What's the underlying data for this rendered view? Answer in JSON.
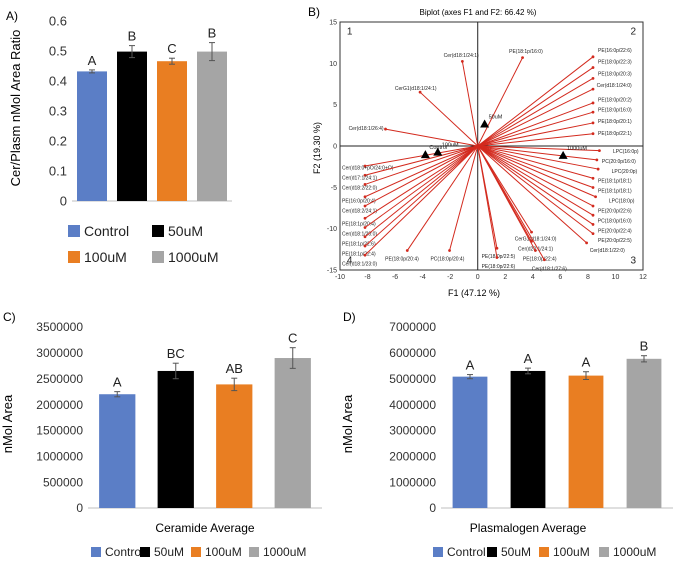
{
  "panels": {
    "A": "A)",
    "B": "B)",
    "C": "C)",
    "D": "D)"
  },
  "colors": {
    "Control": "#5b7ec6",
    "50uM": "#000000",
    "100uM": "#e97e22",
    "1000uM": "#a5a5a5",
    "biplot_red": "#d32a1e"
  },
  "legend": [
    "Control",
    "50uM",
    "100uM",
    "1000uM"
  ],
  "chart_data": [
    {
      "id": "A",
      "type": "bar",
      "categories": [
        "Control",
        "50uM",
        "100uM",
        "1000uM"
      ],
      "values": [
        0.432,
        0.498,
        0.466,
        0.498
      ],
      "errors": [
        0.005,
        0.02,
        0.01,
        0.03
      ],
      "letters": [
        "A",
        "B",
        "C",
        "B"
      ],
      "ylabel": "Cer/Plasm nMol Area Ratio",
      "ylim": [
        0,
        0.6
      ],
      "yticks": [
        "0",
        "0.1",
        "0.2",
        "0.3",
        "0.4",
        "0.5",
        "0.6"
      ],
      "legend_position": "bottom"
    },
    {
      "id": "B",
      "type": "scatter",
      "title": "Biplot (axes F1 and F2: 66.42 %)",
      "xlabel": "F1 (47.12 %)",
      "ylabel": "F2 (19.30 %)",
      "xlim": [
        -10,
        12
      ],
      "ylim": [
        -15,
        15
      ],
      "xticks": [
        "-10",
        "-8",
        "-6",
        "-4",
        "-2",
        "0",
        "2",
        "4",
        "6",
        "8",
        "10",
        "12"
      ],
      "yticks": [
        "-15",
        "-10",
        "-5",
        "0",
        "5",
        "10",
        "15"
      ],
      "quadrants": [
        "1",
        "2",
        "3",
        "4"
      ],
      "observations": [
        {
          "label": "Control",
          "x": -3.8,
          "y": -1.1
        },
        {
          "label": "50uM",
          "x": 0.5,
          "y": 2.6
        },
        {
          "label": "100uM",
          "x": -2.9,
          "y": -0.8
        },
        {
          "label": "1000uM",
          "x": 6.2,
          "y": -1.2
        }
      ],
      "loadings": [
        {
          "label": "Cer(d18:1/24:1)",
          "x": -1.2,
          "y": 11.0
        },
        {
          "label": "CerG1(d18:1/24:1)",
          "x": -4.5,
          "y": 7.0
        },
        {
          "label": "Cer(d18:1/26:4)",
          "x": -7.2,
          "y": 2.2
        },
        {
          "label": "PE(18:1p/16:0)",
          "x": 3.5,
          "y": 11.5
        },
        {
          "label": "PE(16:0p/22:6)",
          "x": 9.0,
          "y": 11.6
        },
        {
          "label": "PE(18:0p/22:3)",
          "x": 9.0,
          "y": 10.2
        },
        {
          "label": "PE(18:0p/20:3)",
          "x": 9.0,
          "y": 8.8
        },
        {
          "label": "Cer(d18:1/24:0)",
          "x": 9.0,
          "y": 7.4
        },
        {
          "label": "PE(18:0p/20:2)",
          "x": 9.0,
          "y": 5.6
        },
        {
          "label": "PE(18:0p/16:0)",
          "x": 9.0,
          "y": 4.4
        },
        {
          "label": "PE(18:0p/20:1)",
          "x": 9.0,
          "y": 3.0
        },
        {
          "label": "PE(18:0p/22:1)",
          "x": 9.0,
          "y": 1.6
        },
        {
          "label": "LPC(16:0p)",
          "x": 9.5,
          "y": -0.6
        },
        {
          "label": "PC(20:0p/16:0)",
          "x": 9.3,
          "y": -1.8
        },
        {
          "label": "LPC(20:0p)",
          "x": 9.4,
          "y": -3.0
        },
        {
          "label": "PE(18:1p/18:1)",
          "x": 9.0,
          "y": -4.2
        },
        {
          "label": "PE(18:1p/18:1)",
          "x": 9.0,
          "y": -5.4
        },
        {
          "label": "LPC(18:0p)",
          "x": 9.2,
          "y": -6.6
        },
        {
          "label": "PE(20:0p/22:6)",
          "x": 9.0,
          "y": -7.8
        },
        {
          "label": "PC(18:0p/16:0)",
          "x": 9.0,
          "y": -9.0
        },
        {
          "label": "PE(20:0p/22:4)",
          "x": 9.0,
          "y": -10.2
        },
        {
          "label": "PE(20:0p/22:5)",
          "x": 9.0,
          "y": -11.4
        },
        {
          "label": "Cer(d18:1/22:0)",
          "x": 8.5,
          "y": -12.6
        },
        {
          "label": "CerG1(d18:1/24:0)",
          "x": 4.2,
          "y": -11.2
        },
        {
          "label": "Cer(d20:1/24:1)",
          "x": 4.2,
          "y": -12.4
        },
        {
          "label": "PE(18:0p/22:4)",
          "x": 4.5,
          "y": -13.6
        },
        {
          "label": "Cer(d18:1/27:6)",
          "x": 5.2,
          "y": -14.8
        },
        {
          "label": "PE(18:0p/22:5)",
          "x": 1.5,
          "y": -13.3
        },
        {
          "label": "PE(18:0p/22:6)",
          "x": 1.5,
          "y": -14.5
        },
        {
          "label": "PE(18:0p/20:4)",
          "x": -5.5,
          "y": -13.6
        },
        {
          "label": "PC(18:0p/20:4)",
          "x": -2.2,
          "y": -13.6
        },
        {
          "label": "Cer(d18:0+pO/24:0+O)",
          "x": -8.8,
          "y": -2.6
        },
        {
          "label": "Cer(d17:1/24:1)",
          "x": -8.8,
          "y": -3.8
        },
        {
          "label": "Cer(d18:2/22:0)",
          "x": -8.8,
          "y": -5.0
        },
        {
          "label": "PE(16:0p/20:4)",
          "x": -8.8,
          "y": -6.6
        },
        {
          "label": "Cer(d18:2/24:1)",
          "x": -8.8,
          "y": -7.8
        },
        {
          "label": "PE(18:1p/20:4)",
          "x": -8.8,
          "y": -9.4
        },
        {
          "label": "Cer(d18:1/20:0)",
          "x": -8.8,
          "y": -10.6
        },
        {
          "label": "PE(18:1p/22:6)",
          "x": -8.8,
          "y": -11.8
        },
        {
          "label": "PE(18:1p/22:4)",
          "x": -8.8,
          "y": -13.0
        },
        {
          "label": "Cer(d18:1/23:0)",
          "x": -8.8,
          "y": -14.2
        }
      ]
    },
    {
      "id": "C",
      "type": "bar",
      "categories": [
        "Control",
        "50uM",
        "100uM",
        "1000uM"
      ],
      "values": [
        2200000,
        2650000,
        2390000,
        2900000
      ],
      "errors": [
        50000,
        150000,
        120000,
        200000
      ],
      "letters": [
        "A",
        "BC",
        "AB",
        "C"
      ],
      "xlabel": "Ceramide Average",
      "ylabel": "nMol Area",
      "ylim": [
        0,
        3500000
      ],
      "yticks": [
        "0",
        "500000",
        "1000000",
        "1500000",
        "2000000",
        "2500000",
        "3000000",
        "3500000"
      ],
      "legend_position": "bottom"
    },
    {
      "id": "D",
      "type": "bar",
      "categories": [
        "Control",
        "50uM",
        "100uM",
        "1000uM"
      ],
      "values": [
        5080000,
        5300000,
        5120000,
        5770000
      ],
      "errors": [
        80000,
        110000,
        150000,
        120000
      ],
      "letters": [
        "A",
        "A",
        "A",
        "B"
      ],
      "xlabel": "Plasmalogen Average",
      "ylabel": "nMol Area",
      "ylim": [
        0,
        7000000
      ],
      "yticks": [
        "0",
        "1000000",
        "2000000",
        "3000000",
        "4000000",
        "5000000",
        "6000000",
        "7000000"
      ],
      "legend_position": "bottom"
    }
  ]
}
